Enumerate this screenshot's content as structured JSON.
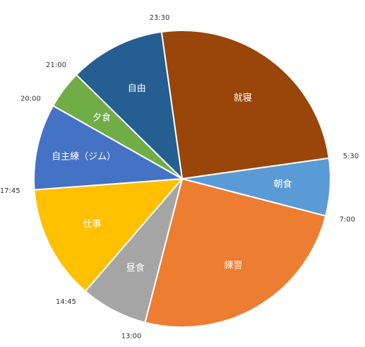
{
  "chart_data": {
    "type": "pie",
    "units": "hours",
    "series": [
      {
        "label": "就寝",
        "start": "23:30",
        "end": "5:30",
        "value": 6.0,
        "color": "#9A4509",
        "label_color": "#FFFFFF"
      },
      {
        "label": "朝食",
        "start": "5:30",
        "end": "7:00",
        "value": 1.5,
        "color": "#5B9BD5",
        "label_color": "#FFFFFF"
      },
      {
        "label": "練習",
        "start": "7:00",
        "end": "13:00",
        "value": 6.0,
        "color": "#ED7D31",
        "label_color": "#FFFFFF"
      },
      {
        "label": "昼食",
        "start": "13:00",
        "end": "14:45",
        "value": 1.75,
        "color": "#A5A5A5",
        "label_color": "#FFFFFF"
      },
      {
        "label": "仕事",
        "start": "14:45",
        "end": "17:45",
        "value": 3.0,
        "color": "#FFC000",
        "label_color": "#FFFFFF"
      },
      {
        "label": "自主練（ジム）",
        "start": "17:45",
        "end": "20:00",
        "value": 2.25,
        "color": "#4472C4",
        "label_color": "#FFFFFF"
      },
      {
        "label": "夕食",
        "start": "20:00",
        "end": "21:00",
        "value": 1.0,
        "color": "#70AD47",
        "label_color": "#FFFFFF"
      },
      {
        "label": "自由",
        "start": "21:00",
        "end": "23:30",
        "value": 2.5,
        "color": "#255E91",
        "label_color": "#FFFFFF"
      }
    ],
    "boundary_labels": [
      "23:30",
      "5:30",
      "7:00",
      "13:00",
      "14:45",
      "17:45",
      "20:00",
      "21:00"
    ],
    "start_angle_deg": -8
  }
}
